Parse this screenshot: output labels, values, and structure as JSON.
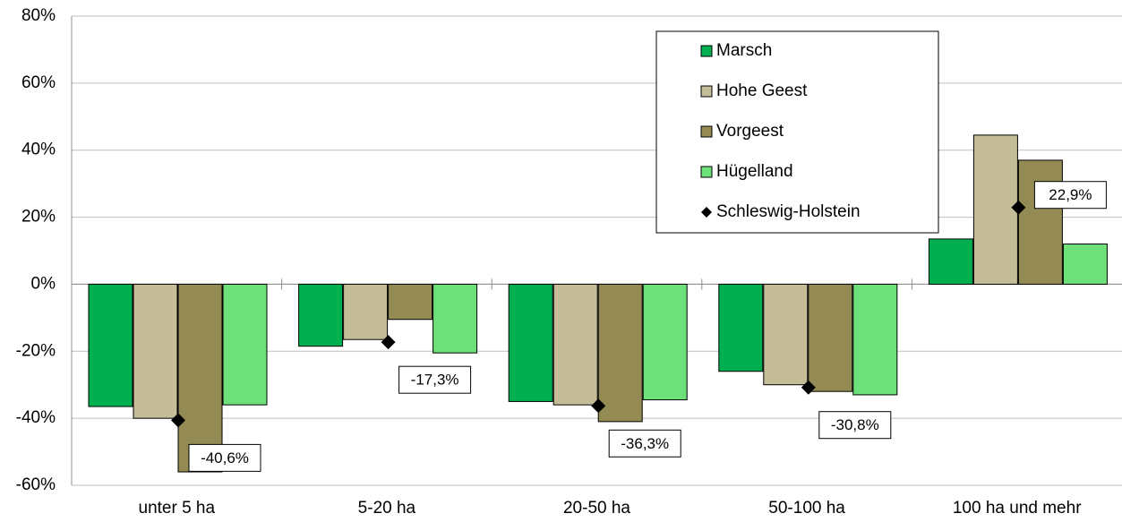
{
  "chart_data": {
    "type": "bar",
    "categories": [
      "unter 5 ha",
      "5-20 ha",
      "20-50 ha",
      "50-100 ha",
      "100 ha und mehr"
    ],
    "series": [
      {
        "name": "Marsch",
        "color": "#00b050",
        "values": [
          -36.5,
          -18.5,
          -35,
          -26,
          13.5
        ]
      },
      {
        "name": "Hohe Geest",
        "color": "#c4bd97",
        "values": [
          -40,
          -16.5,
          -36,
          -30,
          44.5
        ]
      },
      {
        "name": "Vorgeest",
        "color": "#948a54",
        "values": [
          -56,
          -10.5,
          -41,
          -32,
          37
        ]
      },
      {
        "name": "Hügelland",
        "color": "#6ee07a",
        "values": [
          -36,
          -20.5,
          -34.5,
          -33,
          12
        ]
      },
      {
        "name": "Schleswig-Holstein",
        "color": "#000000",
        "marker": "diamond",
        "values": [
          -40.6,
          -17.3,
          -36.3,
          -30.8,
          22.9
        ],
        "value_labels": [
          "-40,6%",
          "-17,3%",
          "-36,3%",
          "-30,8%",
          "22,9%"
        ]
      }
    ],
    "ylim": [
      -60,
      80
    ],
    "yticks": [
      {
        "value": -60,
        "label": "-60%"
      },
      {
        "value": -40,
        "label": "-40%"
      },
      {
        "value": -20,
        "label": "-20%"
      },
      {
        "value": 0,
        "label": "0%"
      },
      {
        "value": 20,
        "label": "20%"
      },
      {
        "value": 40,
        "label": "40%"
      },
      {
        "value": 60,
        "label": "60%"
      },
      {
        "value": 80,
        "label": "80%"
      }
    ],
    "grid": true
  }
}
